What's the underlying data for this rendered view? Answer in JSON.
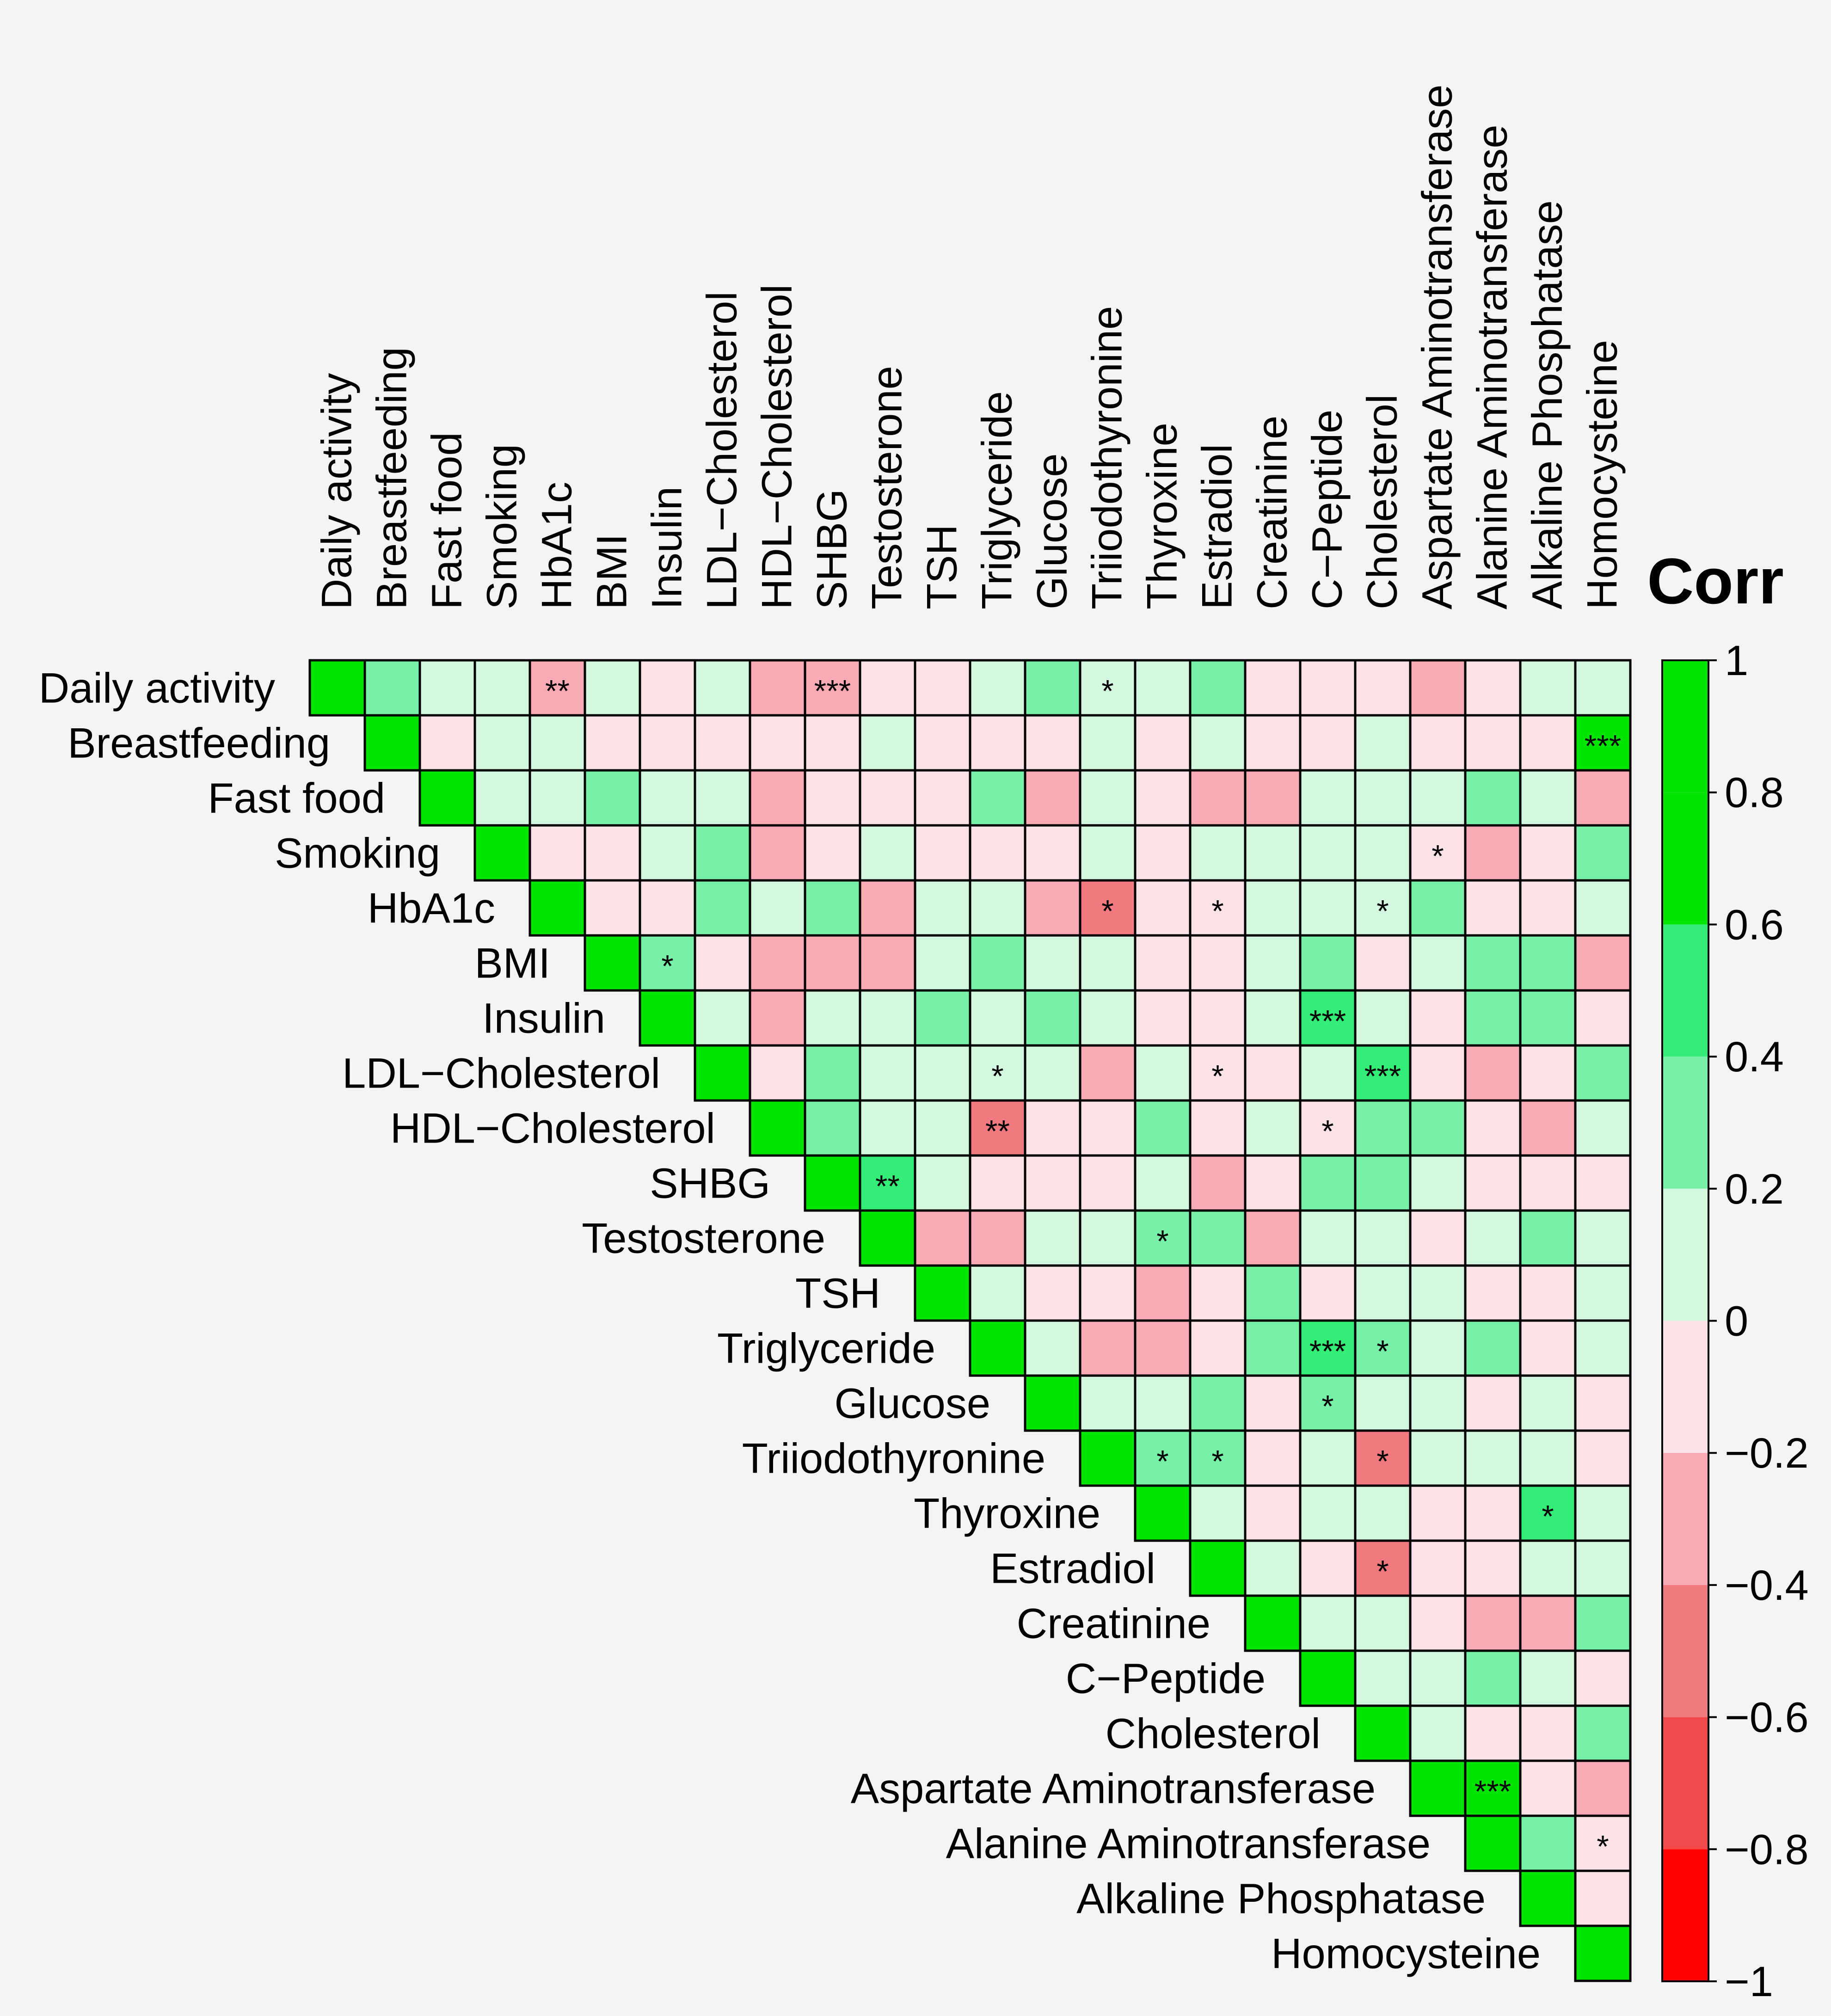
{
  "chart_data": {
    "type": "heatmap",
    "title": "",
    "legend_title": "Corr",
    "legend_placement": "right",
    "variables": [
      "Daily activity",
      "Breastfeeding",
      "Fast food",
      "Smoking",
      "HbA1c",
      "BMI",
      "Insulin",
      "LDL−Cholesterol",
      "HDL−Cholesterol",
      "SHBG",
      "Testosterone",
      "TSH",
      "Triglyceride",
      "Glucose",
      "Triiodothyronine",
      "Thyroxine",
      "Estradiol",
      "Creatinine",
      "C−Peptide",
      "Cholesterol",
      "Aspartate Aminotransferase",
      "Alanine Aminotransferase",
      "Alkaline Phosphatase",
      "Homocysteine"
    ],
    "colorbar": {
      "range": [
        -1,
        1
      ],
      "ticks": [
        "1",
        "0.8",
        "0.6",
        "0.4",
        "0.2",
        "0",
        "−0.2",
        "−0.4",
        "−0.6",
        "−0.8",
        "−1"
      ],
      "bands": [
        {
          "from": 0.8,
          "to": 1.0,
          "color": "#00e600"
        },
        {
          "from": 0.6,
          "to": 0.8,
          "color": "#00e600"
        },
        {
          "from": 0.4,
          "to": 0.6,
          "color": "#33ee77"
        },
        {
          "from": 0.2,
          "to": 0.4,
          "color": "#77f0a8"
        },
        {
          "from": 0.0,
          "to": 0.2,
          "color": "#d4f7e0"
        },
        {
          "from": -0.2,
          "to": 0.0,
          "color": "#fde2e8"
        },
        {
          "from": -0.4,
          "to": -0.2,
          "color": "#f9aab4"
        },
        {
          "from": -0.6,
          "to": -0.4,
          "color": "#f07a80"
        },
        {
          "from": -0.8,
          "to": -0.6,
          "color": "#f24a4a"
        },
        {
          "from": -1.0,
          "to": -0.8,
          "color": "#ff0000"
        }
      ]
    },
    "matrix": [
      [
        1,
        0.3,
        0.1,
        0.1,
        -0.3,
        0.1,
        -0.1,
        0.1,
        -0.3,
        -0.3,
        -0.1,
        -0.1,
        0.1,
        0.3,
        0.1,
        0.1,
        0.3,
        -0.1,
        -0.1,
        -0.1,
        -0.3,
        -0.1,
        0.1,
        0.1
      ],
      [
        null,
        1,
        -0.1,
        0.1,
        0.1,
        -0.1,
        -0.1,
        -0.1,
        -0.1,
        -0.1,
        0.1,
        -0.1,
        -0.1,
        -0.1,
        0.1,
        -0.1,
        0.1,
        -0.1,
        -0.1,
        0.1,
        -0.1,
        -0.1,
        -0.1,
        0.7
      ],
      [
        null,
        null,
        1,
        0.1,
        0.1,
        0.3,
        0.1,
        0.1,
        -0.3,
        -0.1,
        -0.1,
        -0.1,
        0.3,
        -0.3,
        0.1,
        -0.1,
        -0.3,
        -0.3,
        0.1,
        0.1,
        0.1,
        0.3,
        0.1,
        -0.3
      ],
      [
        null,
        null,
        null,
        1,
        -0.1,
        -0.1,
        0.1,
        0.3,
        -0.3,
        -0.1,
        0.1,
        -0.1,
        -0.1,
        -0.1,
        0.1,
        -0.1,
        0.1,
        0.1,
        0.1,
        0.1,
        -0.1,
        -0.3,
        -0.1,
        0.3
      ],
      [
        null,
        null,
        null,
        null,
        1,
        -0.1,
        -0.1,
        0.3,
        0.1,
        0.3,
        -0.3,
        0.1,
        0.1,
        -0.3,
        -0.5,
        -0.1,
        -0.1,
        0.1,
        0.1,
        0.1,
        0.3,
        -0.1,
        -0.1,
        0.1
      ],
      [
        null,
        null,
        null,
        null,
        null,
        1,
        0.3,
        -0.1,
        -0.3,
        -0.3,
        -0.3,
        0.1,
        0.3,
        0.1,
        0.1,
        -0.1,
        -0.1,
        0.1,
        0.3,
        -0.1,
        0.1,
        0.3,
        0.3,
        -0.3
      ],
      [
        null,
        null,
        null,
        null,
        null,
        null,
        1,
        0.1,
        -0.3,
        0.1,
        0.1,
        0.3,
        0.1,
        0.3,
        0.1,
        -0.1,
        -0.1,
        0.1,
        0.5,
        0.1,
        -0.1,
        0.3,
        0.3,
        -0.1
      ],
      [
        null,
        null,
        null,
        null,
        null,
        null,
        null,
        1,
        -0.1,
        0.3,
        0.1,
        0.1,
        0.1,
        0.1,
        -0.3,
        0.1,
        -0.1,
        -0.1,
        0.1,
        0.5,
        -0.1,
        -0.3,
        -0.1,
        0.3
      ],
      [
        null,
        null,
        null,
        null,
        null,
        null,
        null,
        null,
        1,
        0.3,
        0.1,
        0.1,
        -0.5,
        -0.1,
        -0.1,
        0.3,
        -0.1,
        0.1,
        -0.1,
        0.3,
        0.3,
        -0.1,
        -0.3,
        0.1
      ],
      [
        null,
        null,
        null,
        null,
        null,
        null,
        null,
        null,
        null,
        1,
        0.5,
        0.1,
        -0.1,
        -0.1,
        -0.1,
        0.1,
        -0.3,
        -0.1,
        0.3,
        0.3,
        0.1,
        -0.1,
        -0.1,
        -0.1
      ],
      [
        null,
        null,
        null,
        null,
        null,
        null,
        null,
        null,
        null,
        null,
        1,
        -0.3,
        -0.3,
        0.1,
        0.1,
        0.3,
        0.3,
        -0.3,
        0.1,
        0.1,
        -0.1,
        0.1,
        0.3,
        0.1
      ],
      [
        null,
        null,
        null,
        null,
        null,
        null,
        null,
        null,
        null,
        null,
        null,
        1,
        0.1,
        -0.1,
        -0.1,
        -0.3,
        -0.1,
        0.3,
        -0.1,
        0.1,
        0.1,
        -0.1,
        -0.1,
        0.1
      ],
      [
        null,
        null,
        null,
        null,
        null,
        null,
        null,
        null,
        null,
        null,
        null,
        null,
        1,
        0.1,
        -0.3,
        -0.3,
        -0.1,
        0.3,
        0.5,
        0.3,
        0.1,
        0.3,
        -0.1,
        0.1
      ],
      [
        null,
        null,
        null,
        null,
        null,
        null,
        null,
        null,
        null,
        null,
        null,
        null,
        null,
        1,
        0.1,
        0.1,
        0.3,
        -0.1,
        0.3,
        0.1,
        0.1,
        -0.1,
        0.1,
        -0.1
      ],
      [
        null,
        null,
        null,
        null,
        null,
        null,
        null,
        null,
        null,
        null,
        null,
        null,
        null,
        null,
        1,
        0.3,
        0.3,
        -0.1,
        0.1,
        -0.5,
        0.1,
        0.1,
        0.1,
        -0.1
      ],
      [
        null,
        null,
        null,
        null,
        null,
        null,
        null,
        null,
        null,
        null,
        null,
        null,
        null,
        null,
        null,
        1,
        0.1,
        -0.1,
        0.1,
        0.1,
        -0.1,
        -0.1,
        0.5,
        0.1
      ],
      [
        null,
        null,
        null,
        null,
        null,
        null,
        null,
        null,
        null,
        null,
        null,
        null,
        null,
        null,
        null,
        null,
        1,
        0.1,
        -0.1,
        -0.5,
        -0.1,
        -0.1,
        0.1,
        0.1
      ],
      [
        null,
        null,
        null,
        null,
        null,
        null,
        null,
        null,
        null,
        null,
        null,
        null,
        null,
        null,
        null,
        null,
        null,
        1,
        0.1,
        0.1,
        -0.1,
        -0.3,
        -0.3,
        0.3
      ],
      [
        null,
        null,
        null,
        null,
        null,
        null,
        null,
        null,
        null,
        null,
        null,
        null,
        null,
        null,
        null,
        null,
        null,
        null,
        1,
        0.1,
        0.1,
        0.3,
        0.1,
        -0.1
      ],
      [
        null,
        null,
        null,
        null,
        null,
        null,
        null,
        null,
        null,
        null,
        null,
        null,
        null,
        null,
        null,
        null,
        null,
        null,
        null,
        1,
        0.1,
        -0.1,
        -0.1,
        0.3
      ],
      [
        null,
        null,
        null,
        null,
        null,
        null,
        null,
        null,
        null,
        null,
        null,
        null,
        null,
        null,
        null,
        null,
        null,
        null,
        null,
        null,
        1,
        0.7,
        -0.1,
        -0.3
      ],
      [
        null,
        null,
        null,
        null,
        null,
        null,
        null,
        null,
        null,
        null,
        null,
        null,
        null,
        null,
        null,
        null,
        null,
        null,
        null,
        null,
        null,
        1,
        0.3,
        -0.1
      ],
      [
        null,
        null,
        null,
        null,
        null,
        null,
        null,
        null,
        null,
        null,
        null,
        null,
        null,
        null,
        null,
        null,
        null,
        null,
        null,
        null,
        null,
        null,
        1,
        -0.1
      ],
      [
        null,
        null,
        null,
        null,
        null,
        null,
        null,
        null,
        null,
        null,
        null,
        null,
        null,
        null,
        null,
        null,
        null,
        null,
        null,
        null,
        null,
        null,
        null,
        1
      ]
    ],
    "significance": [
      {
        "row": 0,
        "col": 4,
        "label": "**"
      },
      {
        "row": 0,
        "col": 9,
        "label": "***"
      },
      {
        "row": 0,
        "col": 14,
        "label": "*"
      },
      {
        "row": 1,
        "col": 23,
        "label": "***"
      },
      {
        "row": 3,
        "col": 20,
        "label": "*"
      },
      {
        "row": 4,
        "col": 14,
        "label": "*"
      },
      {
        "row": 4,
        "col": 16,
        "label": "*"
      },
      {
        "row": 4,
        "col": 19,
        "label": "*"
      },
      {
        "row": 5,
        "col": 6,
        "label": "*"
      },
      {
        "row": 6,
        "col": 18,
        "label": "***"
      },
      {
        "row": 7,
        "col": 12,
        "label": "*"
      },
      {
        "row": 7,
        "col": 16,
        "label": "*"
      },
      {
        "row": 7,
        "col": 19,
        "label": "***"
      },
      {
        "row": 8,
        "col": 12,
        "label": "**"
      },
      {
        "row": 8,
        "col": 18,
        "label": "*"
      },
      {
        "row": 9,
        "col": 10,
        "label": "**"
      },
      {
        "row": 10,
        "col": 15,
        "label": "*"
      },
      {
        "row": 12,
        "col": 18,
        "label": "***"
      },
      {
        "row": 12,
        "col": 19,
        "label": "*"
      },
      {
        "row": 13,
        "col": 18,
        "label": "*"
      },
      {
        "row": 14,
        "col": 15,
        "label": "*"
      },
      {
        "row": 14,
        "col": 16,
        "label": "*"
      },
      {
        "row": 14,
        "col": 19,
        "label": "*"
      },
      {
        "row": 15,
        "col": 22,
        "label": "*"
      },
      {
        "row": 16,
        "col": 19,
        "label": "*"
      },
      {
        "row": 20,
        "col": 21,
        "label": "***"
      },
      {
        "row": 21,
        "col": 23,
        "label": "*"
      }
    ]
  }
}
